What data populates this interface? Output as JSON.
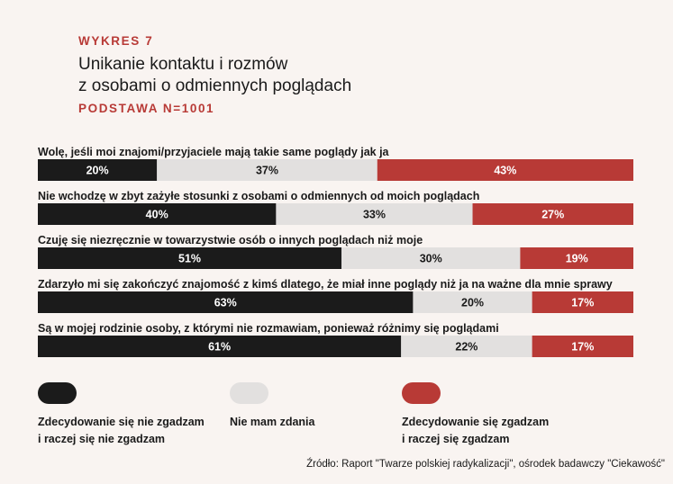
{
  "header": {
    "kicker": "WYKRES 7",
    "title_line1": "Unikanie kontaktu i rozmów",
    "title_line2": "z osobami o odmiennych poglądach",
    "base": "PODSTAWA N=1001"
  },
  "colors": {
    "disagree": "#1b1b1b",
    "neutral": "#e2e0df",
    "agree": "#b83a36",
    "background": "#f9f4f1"
  },
  "chart_data": {
    "type": "bar",
    "stacked": true,
    "orientation": "horizontal",
    "percent_stacked": true,
    "categories": [
      "Wolę, jeśli moi znajomi/przyjaciele mają takie same poglądy jak ja",
      "Nie wchodzę w zbyt zażyłe stosunki z osobami o odmiennych od moich poglądach",
      "Czuję się niezręcznie w towarzystwie osób o innych poglądach niż moje",
      "Zdarzyło mi się zakończyć znajomość z kimś dlatego, że miał inne poglądy niż ja na ważne dla mnie sprawy",
      "Są w mojej rodzinie osoby, z którymi nie rozmawiam, ponieważ różnimy się poglądami"
    ],
    "series": [
      {
        "name": "Zdecydowanie się nie zgadzam i raczej się nie zgadzam",
        "values": [
          20,
          40,
          51,
          63,
          61
        ],
        "labels": [
          "20%",
          "40%",
          "51%",
          "63%",
          "61%"
        ]
      },
      {
        "name": "Nie mam zdania",
        "values": [
          37,
          33,
          30,
          20,
          22
        ],
        "labels": [
          "37%",
          "33%",
          "30%",
          "20%",
          "22%"
        ]
      },
      {
        "name": "Zdecydowanie się zgadzam i raczej się zgadzam",
        "values": [
          43,
          27,
          19,
          17,
          17
        ],
        "labels": [
          "43%",
          "27%",
          "19%",
          "17%",
          "17%"
        ]
      }
    ],
    "xlim": [
      0,
      100
    ],
    "legend_position": "bottom"
  },
  "legend": {
    "disagree_line1": "Zdecydowanie się nie zgadzam",
    "disagree_line2": "i raczej się nie zgadzam",
    "neutral": "Nie mam zdania",
    "agree_line1": "Zdecydowanie się zgadzam",
    "agree_line2": "i raczej się zgadzam"
  },
  "source": "Źródło: Raport \"Twarze polskiej radykalizacji\", ośrodek badawczy \"Ciekawość\""
}
